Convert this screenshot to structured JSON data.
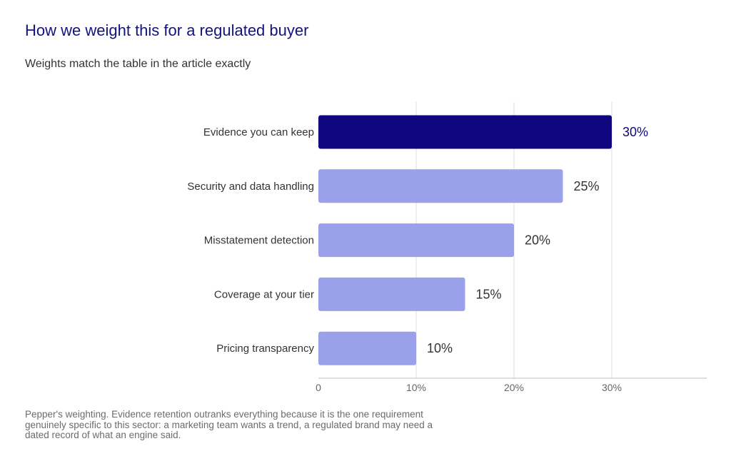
{
  "header": {
    "title": "How we weight this for a regulated buyer",
    "subtitle": "Weights match the table in the article exactly"
  },
  "footer": {
    "note": "Pepper's weighting. Evidence retention outranks everything because it is the one requirement genuinely specific to this sector: a marketing team wants a trend, a regulated brand may need a dated record of what an engine said."
  },
  "colors": {
    "highlight": "#10067f",
    "bar": "#9ba0ea",
    "grid": "#dedede",
    "axis": "#bdbdbd",
    "label_text": "#333333",
    "tick_text": "#666666"
  },
  "chart_data": {
    "type": "bar",
    "orientation": "horizontal",
    "categories": [
      "Evidence you can keep",
      "Security and data handling",
      "Misstatement detection",
      "Coverage at your tier",
      "Pricing transparency"
    ],
    "values": [
      30,
      25,
      20,
      15,
      10
    ],
    "value_labels": [
      "30%",
      "25%",
      "20%",
      "15%",
      "10%"
    ],
    "highlighted_index": 0,
    "x_ticks": [
      0,
      10,
      20,
      30
    ],
    "x_tick_labels": [
      "0",
      "10%",
      "20%",
      "30%"
    ],
    "xlim": [
      0,
      40
    ],
    "grid": true,
    "xlabel": "",
    "ylabel": ""
  }
}
